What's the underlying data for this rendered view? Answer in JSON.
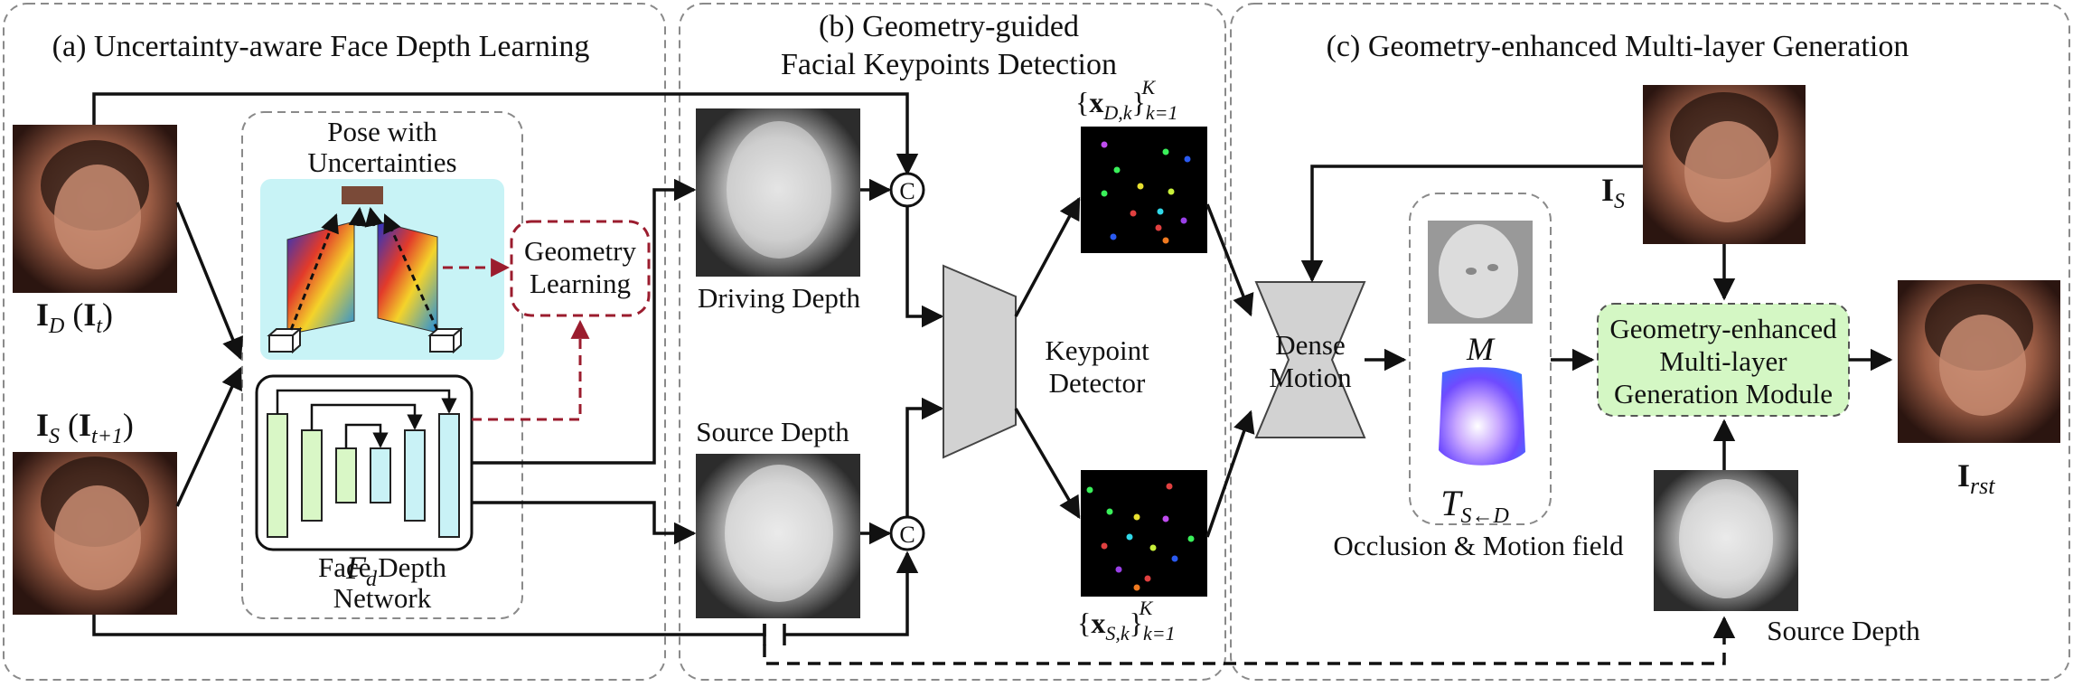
{
  "panels": {
    "a_title": "(a) Uncertainty-aware Face Depth Learning",
    "b_title_line1": "(b) Geometry-guided",
    "b_title_line2": "Facial Keypoints Detection",
    "c_title": "(c) Geometry-enhanced Multi-layer Generation"
  },
  "panel_a": {
    "pose_line1": "Pose with",
    "pose_line2": "Uncertainties",
    "geometry_line1": "Geometry",
    "geometry_line2": "Learning",
    "depth_net_line1": "Face Depth",
    "depth_net_line2": "Network",
    "fd_symbol": "F",
    "fd_sub": "d",
    "id_label": {
      "main": "I",
      "sub": "D",
      "paren_main": "I",
      "paren_sub": "t"
    },
    "is_label": {
      "main": "I",
      "sub": "S",
      "paren_main": "I",
      "paren_sub": "t+1"
    }
  },
  "panel_b": {
    "driving_depth": "Driving Depth",
    "source_depth": "Source Depth",
    "concat_symbol": "C",
    "detector_line1": "Keypoint",
    "detector_line2": "Detector",
    "kp_top": {
      "x": "x",
      "sub": "D,k",
      "k": "k=1",
      "K": "K"
    },
    "kp_bottom": {
      "x": "x",
      "sub": "S,k",
      "k": "k=1",
      "K": "K"
    }
  },
  "panel_c": {
    "dense_line1": "Dense",
    "dense_line2": "Motion",
    "m_symbol": "M",
    "t_symbol": "T",
    "t_sub": "S←D",
    "occlusion_label": "Occlusion & Motion field",
    "module_line1": "Geometry-enhanced",
    "module_line2": "Multi-layer",
    "module_line3": "Generation Module",
    "is_label": {
      "main": "I",
      "sub": "S"
    },
    "rst_label": {
      "main": "I",
      "sub": "rst"
    },
    "source_depth": "Source Depth"
  },
  "colors": {
    "red_dashed": "#9b1c2e",
    "module_fill": "#d4f7c4",
    "pose_bg": "#c8f3f6",
    "unet_green": "#d9f7c6",
    "unet_cyan": "#c9f2f6",
    "detector_fill": "#d2d2d2"
  }
}
